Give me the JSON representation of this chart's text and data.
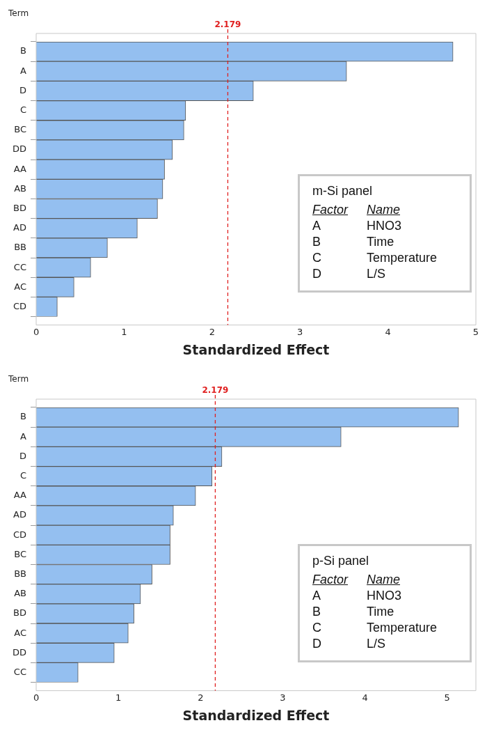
{
  "chart_data": [
    {
      "type": "bar",
      "orientation": "horizontal",
      "ylabel": "Term",
      "xlabel": "Standardized Effect",
      "categories": [
        "B",
        "A",
        "D",
        "C",
        "BC",
        "DD",
        "AA",
        "AB",
        "BD",
        "AD",
        "BB",
        "CC",
        "AC",
        "CD"
      ],
      "values": [
        4.74,
        3.53,
        2.47,
        1.7,
        1.68,
        1.55,
        1.46,
        1.44,
        1.38,
        1.15,
        0.81,
        0.62,
        0.43,
        0.24
      ],
      "color": "#94bff0",
      "xlim": [
        0,
        5
      ],
      "xticks": [
        0,
        1,
        2,
        3,
        4,
        5
      ],
      "grid": false,
      "legend": false,
      "ref_lines": [
        {
          "axis": "x",
          "value": 2.179,
          "label": "2.179",
          "color": "#e02020",
          "line_style": "dashed"
        }
      ],
      "annotations": [
        "m-Si panel",
        "Factor",
        "Name",
        "A",
        "HNO3",
        "B",
        "Time",
        "C",
        "Temperature",
        "D",
        "L/S"
      ]
    },
    {
      "type": "bar",
      "orientation": "horizontal",
      "ylabel": "Term",
      "xlabel": "Standardized Effect",
      "categories": [
        "B",
        "A",
        "D",
        "C",
        "AA",
        "AD",
        "CD",
        "BC",
        "BB",
        "AB",
        "BD",
        "AC",
        "DD",
        "CC"
      ],
      "values": [
        5.14,
        3.71,
        2.26,
        2.14,
        1.94,
        1.67,
        1.63,
        1.63,
        1.41,
        1.27,
        1.19,
        1.12,
        0.95,
        0.51
      ],
      "color": "#94bff0",
      "xlim": [
        0,
        5.35
      ],
      "xticks": [
        0,
        1,
        2,
        3,
        4,
        5
      ],
      "grid": false,
      "legend": false,
      "ref_lines": [
        {
          "axis": "x",
          "value": 2.179,
          "label": "2.179",
          "color": "#e02020",
          "line_style": "dashed"
        }
      ],
      "annotations": [
        "p-Si panel",
        "Factor",
        "Name",
        "A",
        "HNO3",
        "B",
        "Time",
        "C",
        "Temperature",
        "D",
        "L/S"
      ]
    }
  ]
}
